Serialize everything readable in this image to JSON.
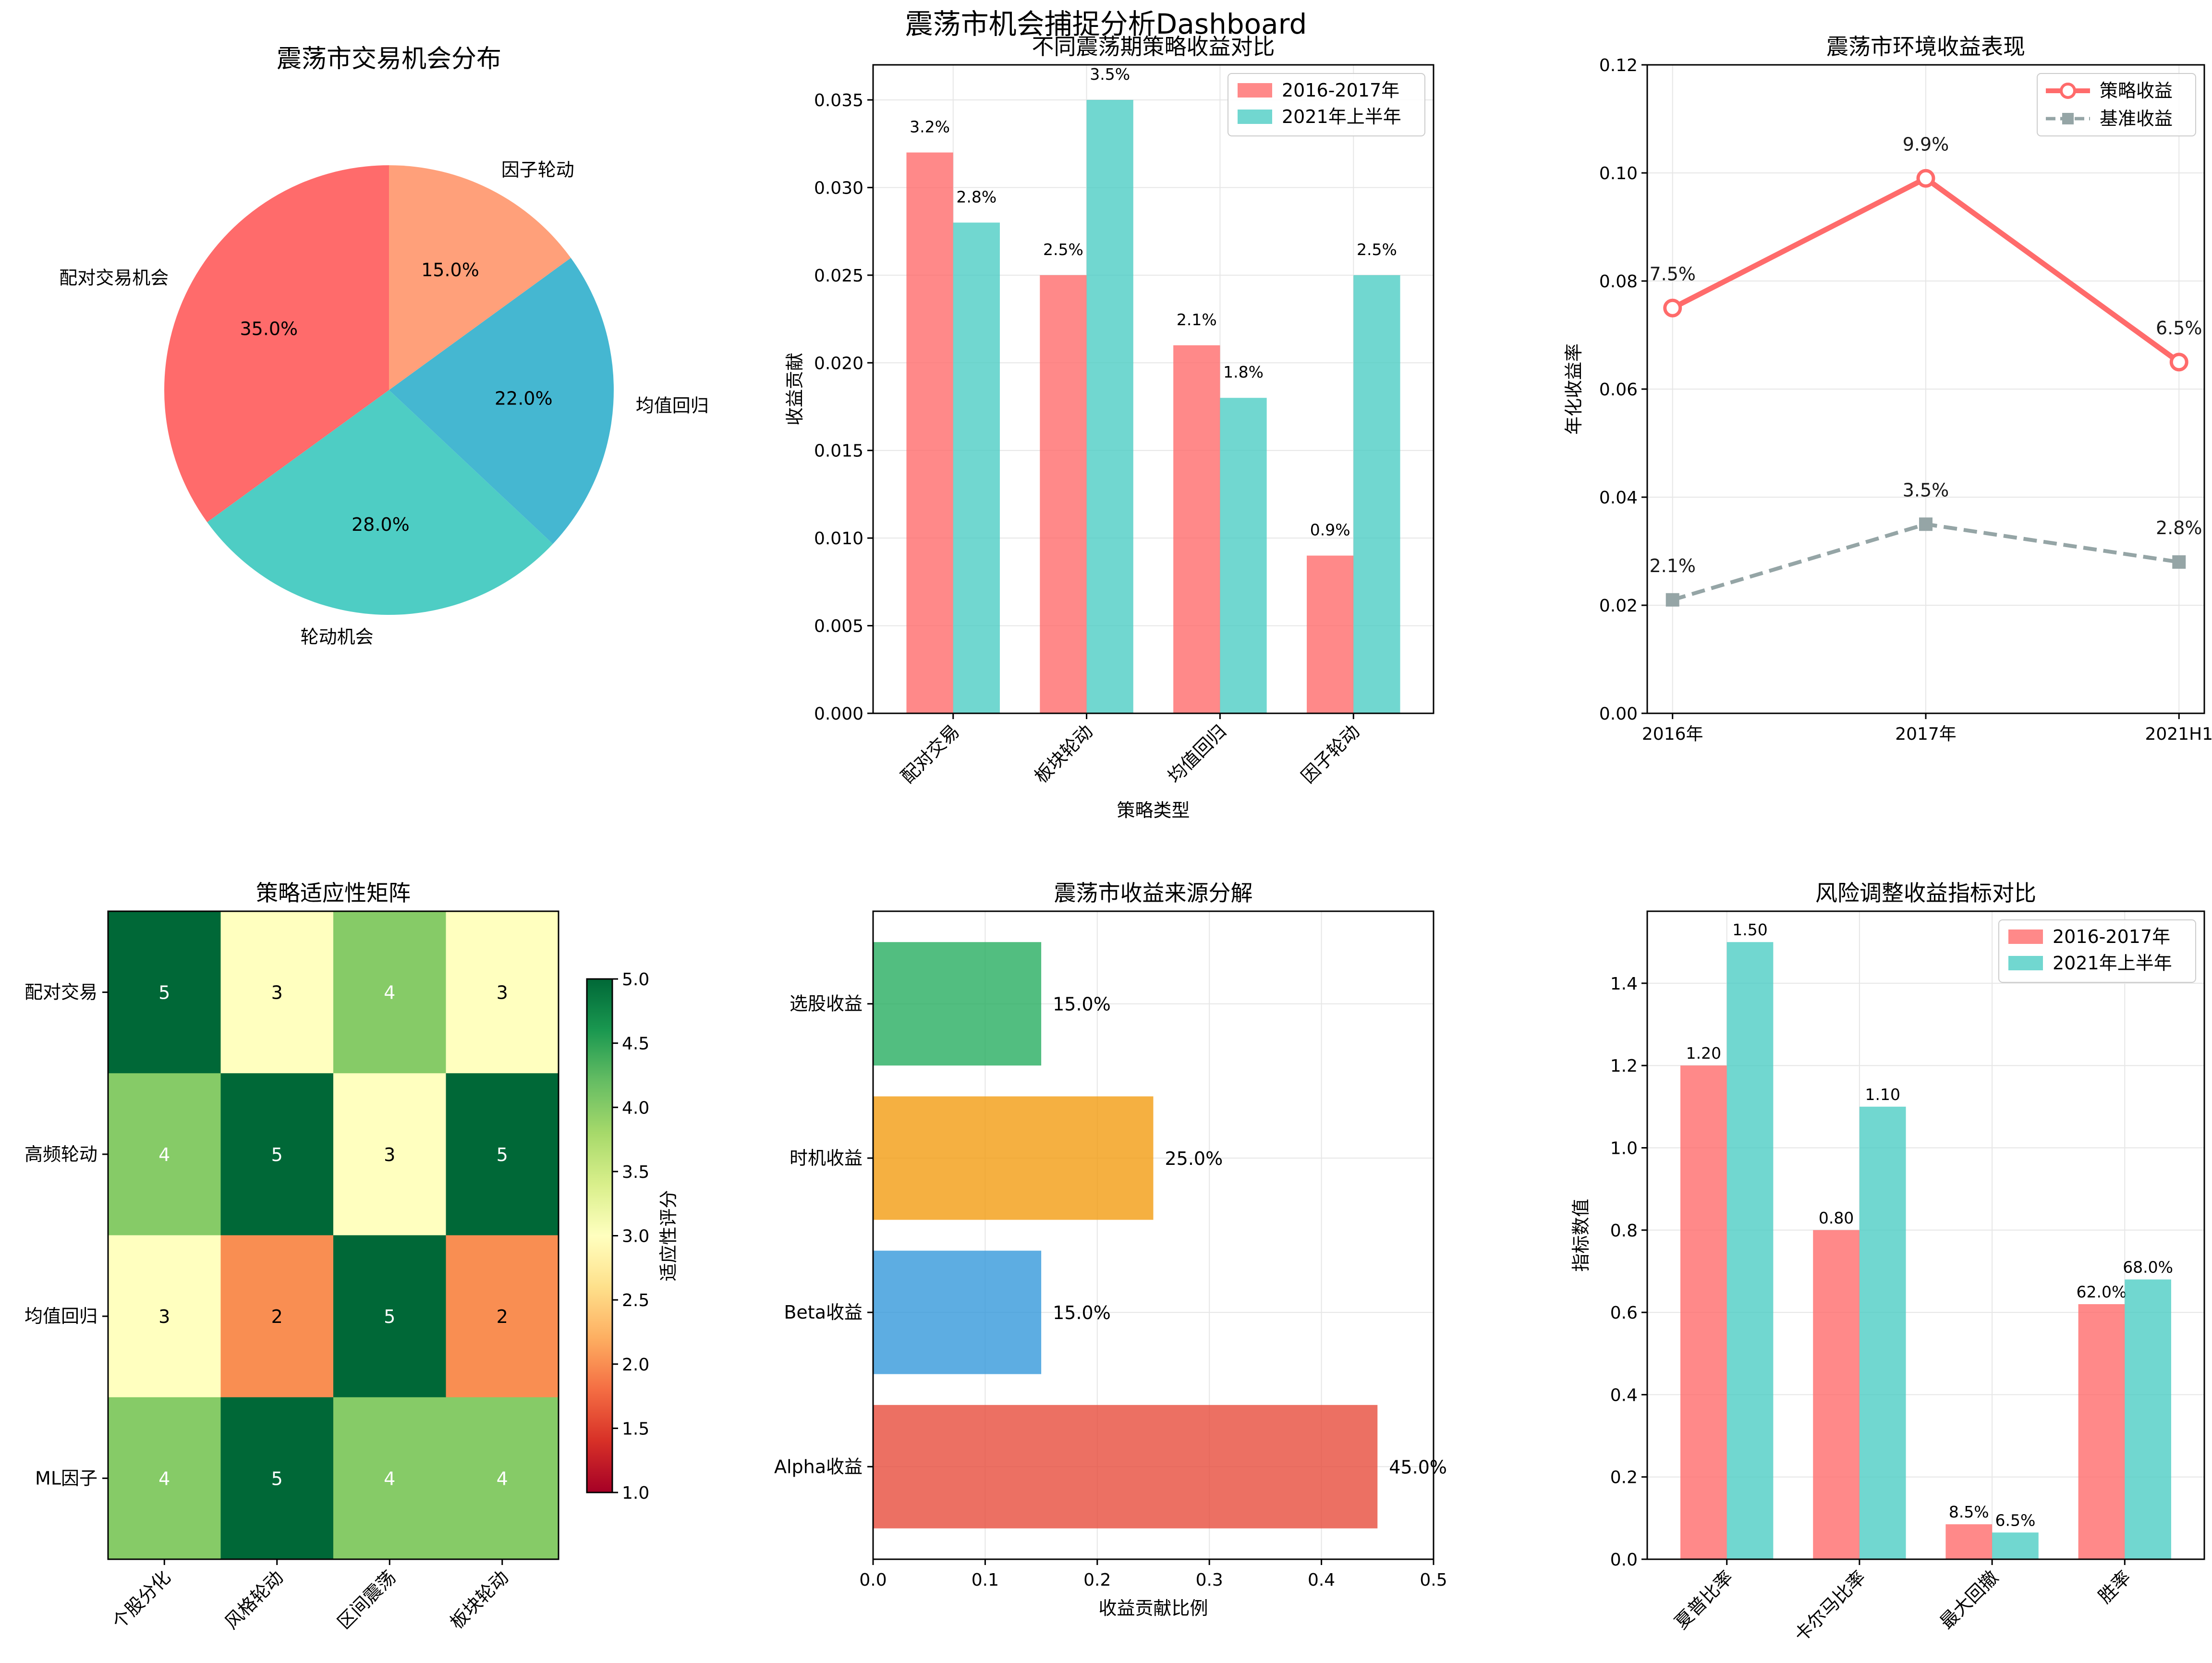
{
  "dashboard": {
    "title": "震荡市机会捕捉分析Dashboard"
  },
  "chart_data": [
    {
      "id": "pie",
      "type": "pie",
      "title": "震荡市交易机会分布",
      "slices": [
        {
          "label": "配对交易机会",
          "value": 35.0,
          "pct_label": "35.0%",
          "color": "#FF6B6B"
        },
        {
          "label": "轮动机会",
          "value": 28.0,
          "pct_label": "28.0%",
          "color": "#4ECDC4"
        },
        {
          "label": "均值回归",
          "value": 22.0,
          "pct_label": "22.0%",
          "color": "#45B7D1"
        },
        {
          "label": "因子轮动",
          "value": 15.0,
          "pct_label": "15.0%",
          "color": "#FFA07A"
        }
      ],
      "start_angle_deg": 90,
      "direction": "counterclockwise"
    },
    {
      "id": "strategy_bar",
      "type": "bar",
      "title": "不同震荡期策略收益对比",
      "xlabel": "策略类型",
      "ylabel": "收益贡献",
      "categories": [
        "配对交易",
        "板块轮动",
        "均值回归",
        "因子轮动"
      ],
      "series": [
        {
          "name": "2016-2017年",
          "values": [
            0.032,
            0.025,
            0.021,
            0.009
          ],
          "labels": [
            "3.2%",
            "2.5%",
            "2.1%",
            "0.9%"
          ],
          "color": "#FF6B6B"
        },
        {
          "name": "2021年上半年",
          "values": [
            0.028,
            0.035,
            0.018,
            0.025
          ],
          "labels": [
            "2.8%",
            "3.5%",
            "1.8%",
            "2.5%"
          ],
          "color": "#4ECDC4"
        }
      ],
      "ylim": [
        0,
        0.037
      ],
      "yticks": [
        0.0,
        0.005,
        0.01,
        0.015,
        0.02,
        0.025,
        0.03,
        0.035
      ],
      "ytick_labels": [
        "0.000",
        "0.005",
        "0.010",
        "0.015",
        "0.020",
        "0.025",
        "0.030",
        "0.035"
      ],
      "legend": "top-right",
      "grid": true
    },
    {
      "id": "return_line",
      "type": "line",
      "title": "震荡市环境收益表现",
      "ylabel": "年化收益率",
      "categories": [
        "2016年",
        "2017年",
        "2021H1"
      ],
      "series": [
        {
          "name": "策略收益",
          "values": [
            0.075,
            0.099,
            0.065
          ],
          "labels": [
            "7.5%",
            "9.9%",
            "6.5%"
          ],
          "color": "#FF6B6B",
          "style": "solid",
          "marker": "circle-open"
        },
        {
          "name": "基准收益",
          "values": [
            0.021,
            0.035,
            0.028
          ],
          "labels": [
            "2.1%",
            "3.5%",
            "2.8%"
          ],
          "color": "#95A5A6",
          "style": "dashed",
          "marker": "square"
        }
      ],
      "ylim": [
        0,
        0.12
      ],
      "yticks": [
        0.0,
        0.02,
        0.04,
        0.06,
        0.08,
        0.1,
        0.12
      ],
      "ytick_labels": [
        "0.00",
        "0.02",
        "0.04",
        "0.06",
        "0.08",
        "0.10",
        "0.12"
      ],
      "legend": "top-right",
      "grid": true
    },
    {
      "id": "heatmap",
      "type": "heatmap",
      "title": "策略适应性矩阵",
      "rows": [
        "配对交易",
        "高频轮动",
        "均值回归",
        "ML因子"
      ],
      "cols": [
        "个股分化",
        "风格轮动",
        "区间震荡",
        "板块轮动"
      ],
      "values": [
        [
          5,
          3,
          4,
          3
        ],
        [
          4,
          5,
          3,
          5
        ],
        [
          3,
          2,
          5,
          2
        ],
        [
          4,
          5,
          4,
          4
        ]
      ],
      "colorbar_label": "适应性评分",
      "vmin": 1,
      "vmax": 5,
      "cbar_ticks": [
        1.0,
        1.5,
        2.0,
        2.5,
        3.0,
        3.5,
        4.0,
        4.5,
        5.0
      ],
      "cbar_tick_labels": [
        "1.0",
        "1.5",
        "2.0",
        "2.5",
        "3.0",
        "3.5",
        "4.0",
        "4.5",
        "5.0"
      ],
      "colormap": "RdYlGn"
    },
    {
      "id": "source_barh",
      "type": "bar",
      "orientation": "horizontal",
      "title": "震荡市收益来源分解",
      "xlabel": "收益贡献比例",
      "categories": [
        "Alpha收益",
        "Beta收益",
        "时机收益",
        "选股收益"
      ],
      "values": [
        0.45,
        0.15,
        0.25,
        0.15
      ],
      "labels": [
        "45.0%",
        "15.0%",
        "25.0%",
        "15.0%"
      ],
      "colors": [
        "#E74C3C",
        "#3498DB",
        "#F39C12",
        "#27AE60"
      ],
      "xlim": [
        0,
        0.5
      ],
      "xticks": [
        0.0,
        0.1,
        0.2,
        0.3,
        0.4,
        0.5
      ],
      "xtick_labels": [
        "0.0",
        "0.1",
        "0.2",
        "0.3",
        "0.4",
        "0.5"
      ],
      "grid": true
    },
    {
      "id": "risk_bar",
      "type": "bar",
      "title": "风险调整收益指标对比",
      "ylabel": "指标数值",
      "categories": [
        "夏普比率",
        "卡尔马比率",
        "最大回撤",
        "胜率"
      ],
      "series": [
        {
          "name": "2016-2017年",
          "values": [
            1.2,
            0.8,
            0.085,
            0.62
          ],
          "labels": [
            "1.20",
            "0.80",
            "8.5%",
            "62.0%"
          ],
          "color": "#FF6B6B"
        },
        {
          "name": "2021年上半年",
          "values": [
            1.5,
            1.1,
            0.065,
            0.68
          ],
          "labels": [
            "1.50",
            "1.10",
            "6.5%",
            "68.0%"
          ],
          "color": "#4ECDC4"
        }
      ],
      "ylim": [
        0,
        1.575
      ],
      "yticks": [
        0.0,
        0.2,
        0.4,
        0.6,
        0.8,
        1.0,
        1.2,
        1.4
      ],
      "ytick_labels": [
        "0.0",
        "0.2",
        "0.4",
        "0.6",
        "0.8",
        "1.0",
        "1.2",
        "1.4"
      ],
      "legend": "top-right",
      "grid": true
    }
  ]
}
